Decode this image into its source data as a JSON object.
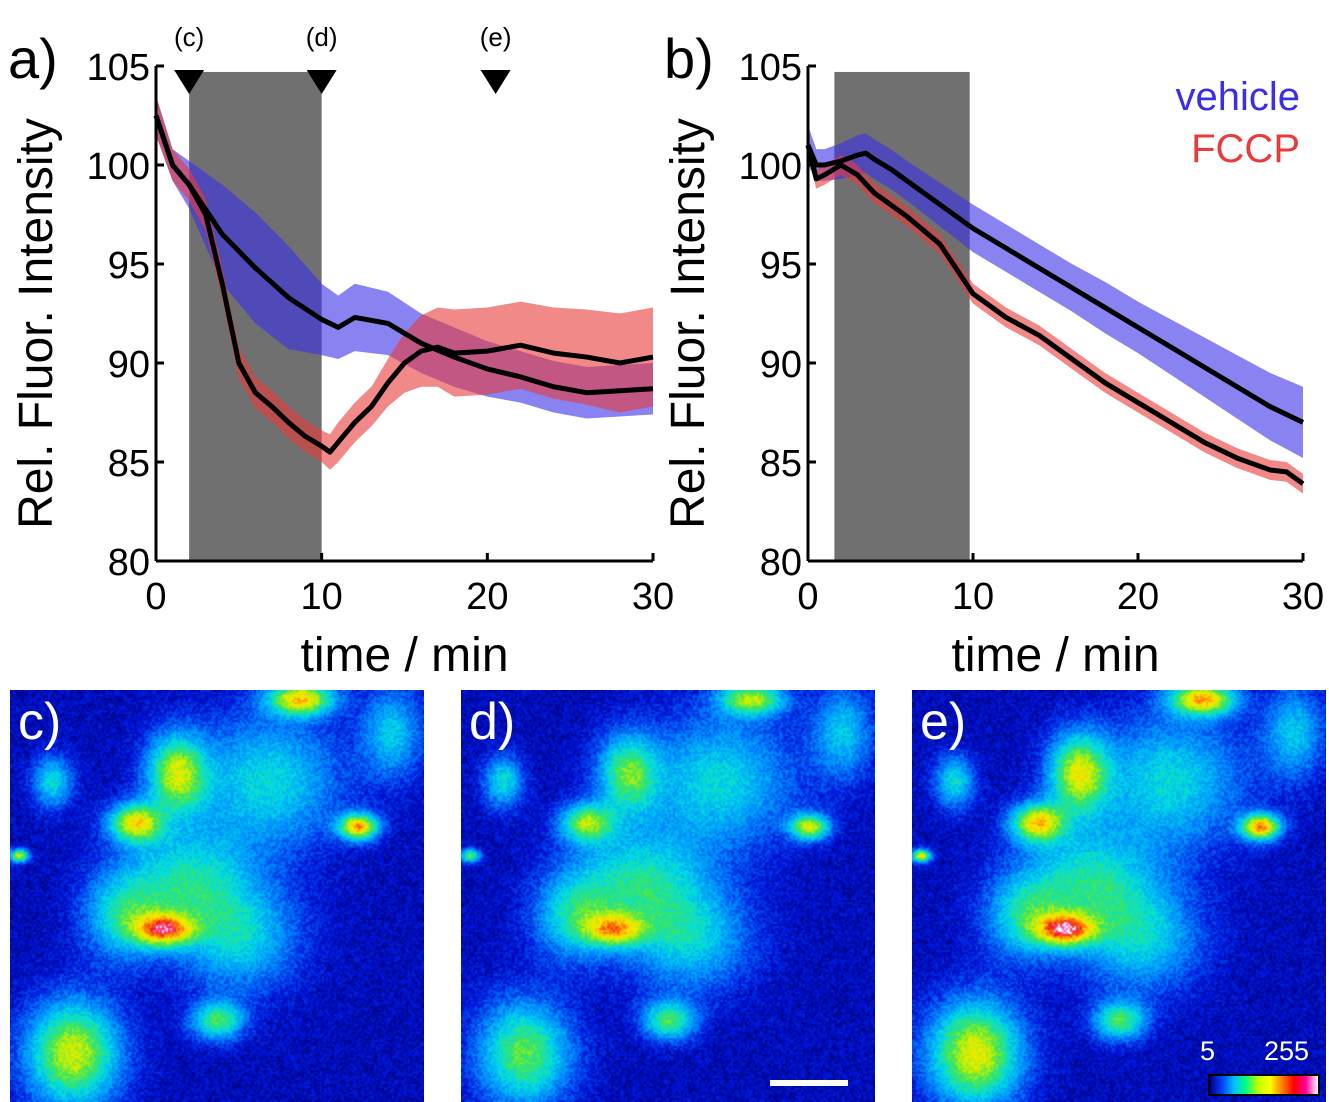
{
  "chart_data": [
    {
      "type": "line",
      "panel_label": "a)",
      "xlabel": "time / min",
      "ylabel": "Rel. Fluor. Intensity",
      "xlim": [
        0,
        30
      ],
      "ylim": [
        80,
        105
      ],
      "xticks": [
        "0",
        "10",
        "20",
        "30"
      ],
      "yticks": [
        "80",
        "85",
        "90",
        "95",
        "100",
        "105"
      ],
      "shaded_interval": [
        2,
        10
      ],
      "markers": [
        {
          "label": "(c)",
          "x": 2
        },
        {
          "label": "(d)",
          "x": 10
        },
        {
          "label": "(e)",
          "x": 20.5
        }
      ],
      "series": [
        {
          "name": "vehicle",
          "color": "#3b2ee8",
          "x": [
            0,
            1,
            2,
            4,
            6,
            8,
            10,
            11,
            12,
            14,
            16,
            18,
            20,
            22,
            24,
            26,
            28,
            30
          ],
          "y": [
            102.5,
            100,
            99,
            96.5,
            94.8,
            93.3,
            92.2,
            91.8,
            92.3,
            92,
            91,
            90.3,
            89.7,
            89.3,
            88.8,
            88.5,
            88.6,
            88.7
          ],
          "err": [
            1,
            0.8,
            1.2,
            2.5,
            2.8,
            2.6,
            1.8,
            1.6,
            1.7,
            1.6,
            1.5,
            1.5,
            1.4,
            1.3,
            1.3,
            1.3,
            1.3,
            1.3
          ]
        },
        {
          "name": "FCCP",
          "color": "#e83b3b",
          "x": [
            0,
            1,
            2,
            3,
            4,
            5,
            6,
            7,
            8,
            9,
            10,
            10.5,
            11,
            12,
            13,
            14,
            15,
            16,
            17,
            18,
            20,
            22,
            24,
            26,
            28,
            30
          ],
          "y": [
            102.5,
            100,
            99,
            97.5,
            94,
            90,
            88.5,
            87.8,
            87,
            86.3,
            85.8,
            85.5,
            86,
            87,
            87.8,
            89,
            90,
            90.6,
            90.8,
            90.5,
            90.6,
            90.9,
            90.5,
            90.3,
            90,
            90.3
          ],
          "err": [
            1,
            0.8,
            0.8,
            0.8,
            0.8,
            0.8,
            0.8,
            0.8,
            0.8,
            0.8,
            0.8,
            0.9,
            1,
            1,
            1,
            1.2,
            1.5,
            1.8,
            2,
            2.2,
            2.2,
            2.2,
            2.3,
            2.4,
            2.5,
            2.5
          ]
        }
      ]
    },
    {
      "type": "line",
      "panel_label": "b)",
      "xlabel": "time / min",
      "ylabel": "Rel. Fluor. Intensity",
      "xlim": [
        0,
        30
      ],
      "ylim": [
        80,
        105
      ],
      "xticks": [
        "0",
        "10",
        "20",
        "30"
      ],
      "yticks": [
        "80",
        "85",
        "90",
        "95",
        "100",
        "105"
      ],
      "shaded_interval": [
        1.6,
        9.8
      ],
      "legend": {
        "position": "top-right",
        "entries": [
          {
            "label": "vehicle",
            "color": "#3b2ee8"
          },
          {
            "label": "FCCP",
            "color": "#e83b3b"
          }
        ]
      },
      "series": [
        {
          "name": "vehicle",
          "color": "#3b2ee8",
          "x": [
            0,
            0.5,
            1,
            2,
            3,
            3.5,
            4,
            5,
            6,
            8,
            10,
            12,
            14,
            16,
            18,
            20,
            22,
            24,
            26,
            28,
            30
          ],
          "y": [
            101,
            100,
            100,
            100.2,
            100.5,
            100.6,
            100.3,
            99.8,
            99.2,
            98,
            96.8,
            95.8,
            94.8,
            93.8,
            92.8,
            91.8,
            90.8,
            89.8,
            88.8,
            87.8,
            87
          ],
          "err": [
            1,
            0.8,
            0.8,
            0.9,
            1,
            1,
            1,
            1,
            1,
            1.1,
            1.2,
            1.2,
            1.2,
            1.2,
            1.3,
            1.3,
            1.4,
            1.5,
            1.6,
            1.7,
            1.8
          ]
        },
        {
          "name": "FCCP",
          "color": "#e83b3b",
          "x": [
            0,
            0.5,
            1,
            2,
            3,
            4,
            5,
            6,
            8,
            10,
            12,
            14,
            16,
            18,
            20,
            22,
            24,
            26,
            28,
            29,
            30
          ],
          "y": [
            101,
            99.3,
            99.5,
            100,
            99.5,
            98.6,
            98,
            97.4,
            96,
            93.5,
            92.3,
            91.4,
            90.2,
            89,
            88,
            87,
            86,
            85.2,
            84.6,
            84.5,
            83.9
          ],
          "err": [
            0.6,
            0.5,
            0.5,
            0.5,
            0.5,
            0.5,
            0.5,
            0.5,
            0.5,
            0.5,
            0.5,
            0.5,
            0.5,
            0.5,
            0.5,
            0.5,
            0.5,
            0.5,
            0.5,
            0.5,
            0.5
          ]
        }
      ]
    }
  ],
  "images": [
    {
      "label": "c)",
      "colormap": "rainbow-pseudocolor"
    },
    {
      "label": "d)",
      "colormap": "rainbow-pseudocolor",
      "scale_bar": true
    },
    {
      "label": "e)",
      "colormap": "rainbow-pseudocolor",
      "colorbar": {
        "min_label": "5",
        "max_label": "255"
      }
    }
  ]
}
